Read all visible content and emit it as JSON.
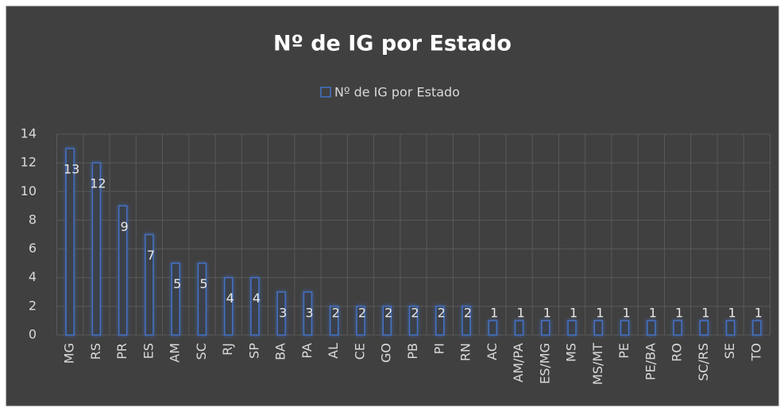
{
  "chart_data": {
    "type": "bar",
    "title": "Nº de IG por Estado",
    "categories": [
      "MG",
      "RS",
      "PR",
      "ES",
      "AM",
      "SC",
      "RJ",
      "SP",
      "BA",
      "PA",
      "AL",
      "CE",
      "GO",
      "PB",
      "PI",
      "RN",
      "AC",
      "AM/PA",
      "ES/MG",
      "MS",
      "MS/MT",
      "PE",
      "PE/BA",
      "RO",
      "SC/RS",
      "SE",
      "TO"
    ],
    "series": [
      {
        "name": "Nº de IG por Estado",
        "color": "#4472c4",
        "values": [
          13,
          12,
          9,
          7,
          5,
          5,
          4,
          4,
          3,
          3,
          2,
          2,
          2,
          2,
          2,
          2,
          1,
          1,
          1,
          1,
          1,
          1,
          1,
          1,
          1,
          1,
          1
        ]
      }
    ],
    "ylim": [
      0,
      14
    ],
    "yticks": [
      0,
      2,
      4,
      6,
      8,
      10,
      12,
      14
    ],
    "grid": true,
    "legend": "top"
  }
}
